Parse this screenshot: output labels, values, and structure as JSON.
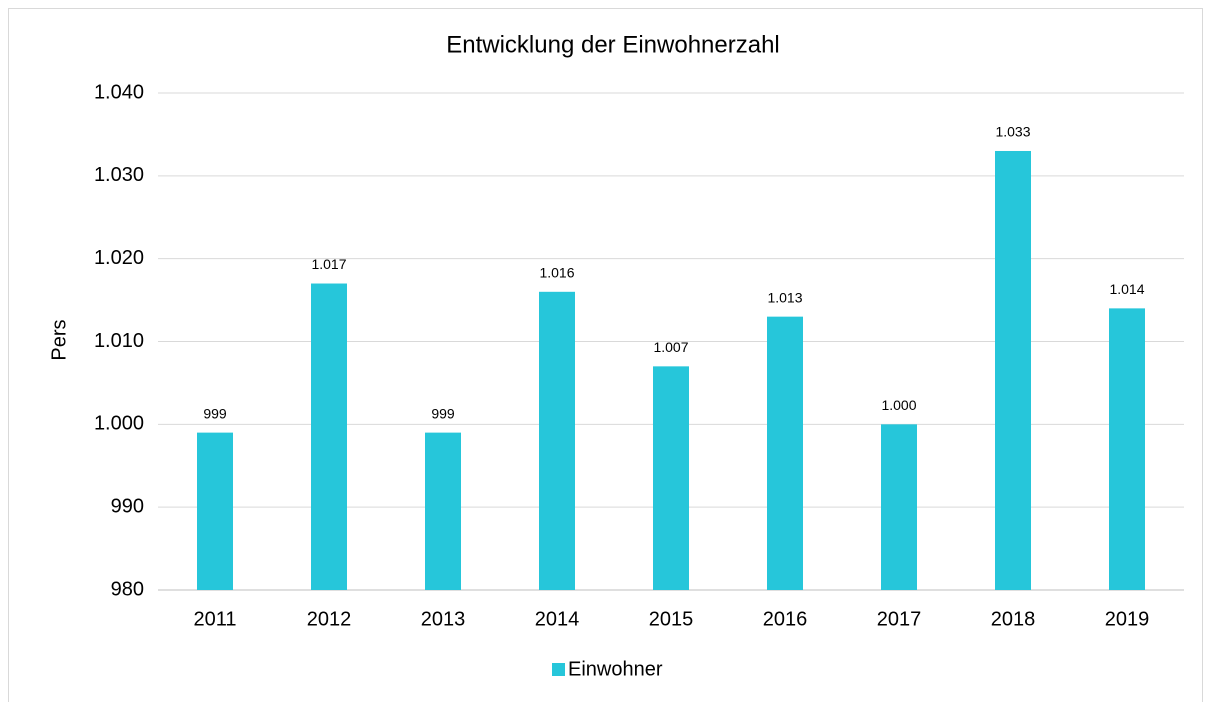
{
  "chart_data": {
    "type": "bar",
    "title": "Entwicklung der Einwohnerzahl",
    "y_label": "Pers",
    "categories": [
      "2011",
      "2012",
      "2013",
      "2014",
      "2015",
      "2016",
      "2017",
      "2018",
      "2019"
    ],
    "series": [
      {
        "name": "Einwohner",
        "color": "#26c6da",
        "values": [
          999,
          1017,
          999,
          1016,
          1007,
          1013,
          1000,
          1033,
          1014
        ],
        "value_labels": [
          "999",
          "1.017",
          "999",
          "1.016",
          "1.007",
          "1.013",
          "1.000",
          "1.033",
          "1.014"
        ]
      }
    ],
    "ylim": [
      980,
      1040
    ],
    "yticks": [
      {
        "value": 980,
        "label": "980"
      },
      {
        "value": 990,
        "label": "990"
      },
      {
        "value": 1000,
        "label": "1.000"
      },
      {
        "value": 1010,
        "label": "1.010"
      },
      {
        "value": 1020,
        "label": "1.020"
      },
      {
        "value": 1030,
        "label": "1.030"
      },
      {
        "value": 1040,
        "label": "1.040"
      }
    ],
    "grid": true,
    "legend": "bottom"
  }
}
